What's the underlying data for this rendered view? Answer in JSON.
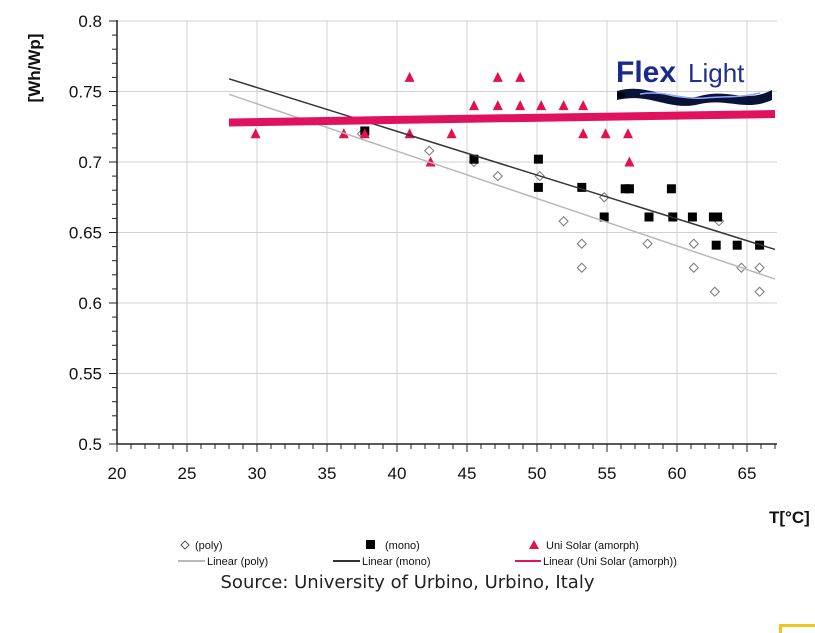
{
  "chart_data": {
    "type": "scatter",
    "title": "",
    "ylabel": "[Wh/Wp]",
    "xlabel": "T[°C]",
    "xlim": [
      20,
      67
    ],
    "ylim": [
      0.5,
      0.8
    ],
    "xticks": [
      20,
      25,
      30,
      35,
      40,
      45,
      50,
      55,
      60,
      65
    ],
    "yticks": [
      0.5,
      0.55,
      0.6,
      0.65,
      0.7,
      0.75,
      0.8
    ],
    "ytick_labels": [
      "0.5",
      "0.55",
      "0.6",
      "0.65",
      "0.7",
      "0.75",
      "0.8"
    ],
    "grid": true,
    "legend_position": "bottom",
    "series": [
      {
        "name": "(poly)",
        "marker": "diamond-open",
        "color": "#777777",
        "points": [
          [
            37.5,
            0.72
          ],
          [
            42.3,
            0.708
          ],
          [
            45.5,
            0.7
          ],
          [
            47.2,
            0.69
          ],
          [
            50.2,
            0.69
          ],
          [
            51.9,
            0.658
          ],
          [
            53.2,
            0.642
          ],
          [
            53.2,
            0.625
          ],
          [
            54.8,
            0.675
          ],
          [
            57.9,
            0.642
          ],
          [
            61.2,
            0.642
          ],
          [
            61.2,
            0.625
          ],
          [
            62.7,
            0.608
          ],
          [
            63.0,
            0.658
          ],
          [
            64.6,
            0.625
          ],
          [
            65.9,
            0.625
          ],
          [
            65.9,
            0.608
          ]
        ]
      },
      {
        "name": "(mono)",
        "marker": "square",
        "color": "#000000",
        "points": [
          [
            37.7,
            0.722
          ],
          [
            45.5,
            0.702
          ],
          [
            50.1,
            0.702
          ],
          [
            50.1,
            0.682
          ],
          [
            53.2,
            0.682
          ],
          [
            54.8,
            0.661
          ],
          [
            56.3,
            0.681
          ],
          [
            56.6,
            0.681
          ],
          [
            58.0,
            0.661
          ],
          [
            59.6,
            0.681
          ],
          [
            59.7,
            0.661
          ],
          [
            61.1,
            0.661
          ],
          [
            62.6,
            0.661
          ],
          [
            62.9,
            0.661
          ],
          [
            62.8,
            0.641
          ],
          [
            64.3,
            0.641
          ],
          [
            65.9,
            0.641
          ]
        ]
      },
      {
        "name": "Uni Solar (amorph)",
        "marker": "triangle",
        "color": "#e0114e",
        "points": [
          [
            29.9,
            0.72
          ],
          [
            36.2,
            0.72
          ],
          [
            37.7,
            0.72
          ],
          [
            40.9,
            0.76
          ],
          [
            40.9,
            0.72
          ],
          [
            42.4,
            0.7
          ],
          [
            43.9,
            0.72
          ],
          [
            45.5,
            0.74
          ],
          [
            47.2,
            0.76
          ],
          [
            47.2,
            0.74
          ],
          [
            48.8,
            0.76
          ],
          [
            48.8,
            0.74
          ],
          [
            50.3,
            0.74
          ],
          [
            51.9,
            0.74
          ],
          [
            53.3,
            0.74
          ],
          [
            53.3,
            0.72
          ],
          [
            54.9,
            0.72
          ],
          [
            56.5,
            0.72
          ],
          [
            56.6,
            0.7
          ]
        ]
      }
    ],
    "trendlines": [
      {
        "name": "Linear (poly)",
        "color": "#b8b8b8",
        "width": 1.5,
        "from": [
          28,
          0.748
        ],
        "to": [
          67,
          0.617
        ]
      },
      {
        "name": "Linear  (mono)",
        "color": "#333333",
        "width": 1.5,
        "from": [
          28,
          0.759
        ],
        "to": [
          67,
          0.638
        ]
      },
      {
        "name": "Linear (Uni Solar (amorph))",
        "color": "#e0115f",
        "width": 8,
        "from": [
          28,
          0.728
        ],
        "to": [
          67,
          0.734
        ]
      }
    ],
    "legend_rows": [
      [
        "(poly)",
        "(mono)",
        "Uni Solar (amorph)"
      ],
      [
        "Linear (poly)",
        "Linear  (mono)",
        "Linear (Uni Solar (amorph))"
      ]
    ]
  },
  "logo": {
    "text_bold": "Flex",
    "text_light": "Light",
    "color_bold": "#1a2a8c",
    "color_light": "#1e3090"
  },
  "source": "Source: University of Urbino, Urbino, Italy"
}
